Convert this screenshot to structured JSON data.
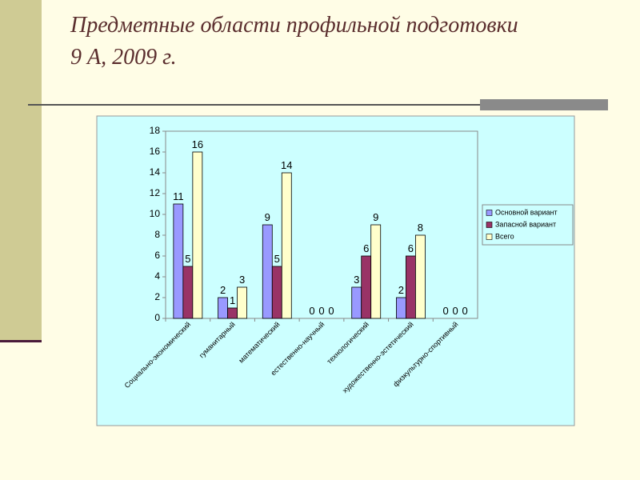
{
  "title_lines": [
    "Предметные области профильной подготовки",
    "9 А, 2009 г."
  ],
  "chart_data": {
    "type": "bar",
    "categories": [
      "Социально-экономический",
      "гуманитарный",
      "математический",
      "естественно-научный",
      "технологический",
      "художественно-эстетический",
      "физкультурно-спортивный"
    ],
    "series": [
      {
        "name": "Основной вариант",
        "color": "#9999ff",
        "values": [
          11,
          2,
          9,
          0,
          3,
          2,
          0
        ]
      },
      {
        "name": "Запасной вариант",
        "color": "#993366",
        "values": [
          5,
          1,
          5,
          0,
          6,
          6,
          0
        ]
      },
      {
        "name": "Всего",
        "color": "#ffffcc",
        "values": [
          16,
          3,
          14,
          0,
          9,
          8,
          0
        ]
      }
    ],
    "ylim": [
      0,
      18
    ],
    "yticks": [
      0,
      2,
      4,
      6,
      8,
      10,
      12,
      14,
      16,
      18
    ],
    "legend": "right"
  }
}
